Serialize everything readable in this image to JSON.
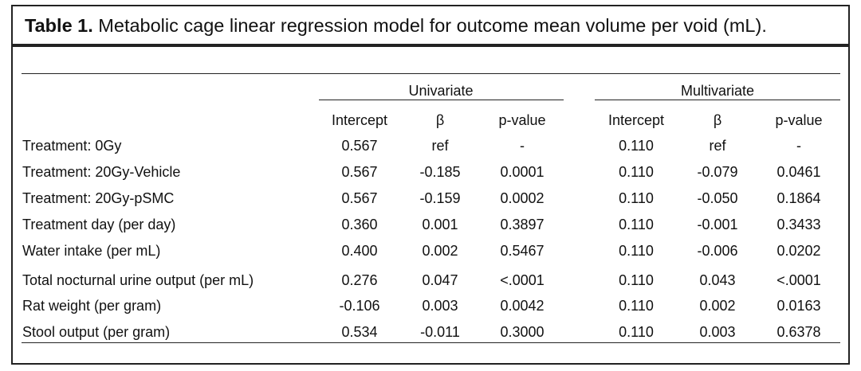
{
  "caption": {
    "label": "Table 1.",
    "text": "Metabolic cage linear regression model for outcome mean volume per void (mL)."
  },
  "groups": [
    "Univariate",
    "Multivariate"
  ],
  "columns": [
    "Intercept",
    "β",
    "p-value",
    "Intercept",
    "β",
    "p-value"
  ],
  "rows": [
    {
      "label": "Treatment: 0Gy",
      "cells": [
        "0.567",
        "ref",
        "-",
        "0.110",
        "ref",
        "-"
      ]
    },
    {
      "label": "Treatment: 20Gy-Vehicle",
      "cells": [
        "0.567",
        "-0.185",
        "0.0001",
        "0.110",
        "-0.079",
        "0.0461"
      ]
    },
    {
      "label": "Treatment: 20Gy-pSMC",
      "cells": [
        "0.567",
        "-0.159",
        "0.0002",
        "0.110",
        "-0.050",
        "0.1864"
      ]
    },
    {
      "label": "Treatment day (per day)",
      "cells": [
        "0.360",
        "0.001",
        "0.3897",
        "0.110",
        "-0.001",
        "0.3433"
      ]
    },
    {
      "label": "Water intake (per mL)",
      "cells": [
        "0.400",
        "0.002",
        "0.5467",
        "0.110",
        "-0.006",
        "0.0202"
      ]
    },
    {
      "label": "Total nocturnal urine output (per mL)",
      "cells": [
        "0.276",
        "0.047",
        "<.0001",
        "0.110",
        "0.043",
        "<.0001"
      ]
    },
    {
      "label": "Rat weight (per gram)",
      "cells": [
        "-0.106",
        "0.003",
        "0.0042",
        "0.110",
        "0.002",
        "0.0163"
      ]
    },
    {
      "label": "Stool output (per gram)",
      "cells": [
        "0.534",
        "-0.011",
        "0.3000",
        "0.110",
        "0.003",
        "0.6378"
      ]
    }
  ]
}
